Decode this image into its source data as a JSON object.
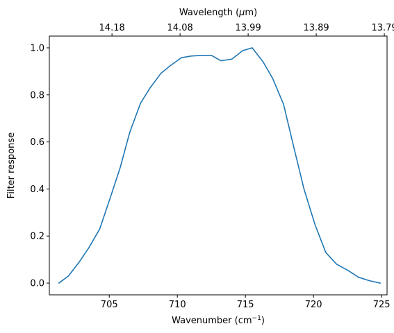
{
  "chart_data": {
    "type": "line",
    "xlabel": "Wavenumber (cm",
    "xlabel_sup": "−1",
    "xlabel_end": ")",
    "ylabel": "Filter response",
    "top_xlabel": "Wavelength (",
    "top_xlabel_mu": "μ",
    "top_xlabel_end": "m)",
    "xlim": [
      700.6,
      725.4
    ],
    "ylim": [
      -0.05,
      1.05
    ],
    "x_ticks": [
      {
        "value": 705,
        "label": "705"
      },
      {
        "value": 710,
        "label": "710"
      },
      {
        "value": 715,
        "label": "715"
      },
      {
        "value": 720,
        "label": "720"
      },
      {
        "value": 725,
        "label": "725"
      }
    ],
    "y_ticks": [
      {
        "value": 0.0,
        "label": "0.0"
      },
      {
        "value": 0.2,
        "label": "0.2"
      },
      {
        "value": 0.4,
        "label": "0.4"
      },
      {
        "value": 0.6,
        "label": "0.6"
      },
      {
        "value": 0.8,
        "label": "0.8"
      },
      {
        "value": 1.0,
        "label": "1.0"
      }
    ],
    "top_ticks": [
      {
        "label": "14.18",
        "wavenumber": 705.2
      },
      {
        "label": "14.08",
        "wavenumber": 710.2
      },
      {
        "label": "13.99",
        "wavenumber": 715.2
      },
      {
        "label": "13.89",
        "wavenumber": 720.2
      },
      {
        "label": "13.79",
        "wavenumber": 725.2
      }
    ],
    "grid": false,
    "series": [
      {
        "color": "#1f77b4",
        "x": [
          701.3,
          702.0,
          702.8,
          703.5,
          704.3,
          705.0,
          705.8,
          706.5,
          707.3,
          708.0,
          708.8,
          709.5,
          710.3,
          711.0,
          711.8,
          712.5,
          713.2,
          714.0,
          714.8,
          715.5,
          716.3,
          717.0,
          717.8,
          718.5,
          719.3,
          720.1,
          720.9,
          721.7,
          722.5,
          723.3,
          724.1,
          724.9
        ],
        "y": [
          0.0,
          0.03,
          0.09,
          0.15,
          0.23,
          0.35,
          0.49,
          0.64,
          0.765,
          0.83,
          0.892,
          0.925,
          0.958,
          0.965,
          0.968,
          0.968,
          0.945,
          0.952,
          0.988,
          1.0,
          0.94,
          0.87,
          0.76,
          0.59,
          0.4,
          0.25,
          0.13,
          0.08,
          0.055,
          0.025,
          0.01,
          0.0
        ]
      }
    ]
  }
}
